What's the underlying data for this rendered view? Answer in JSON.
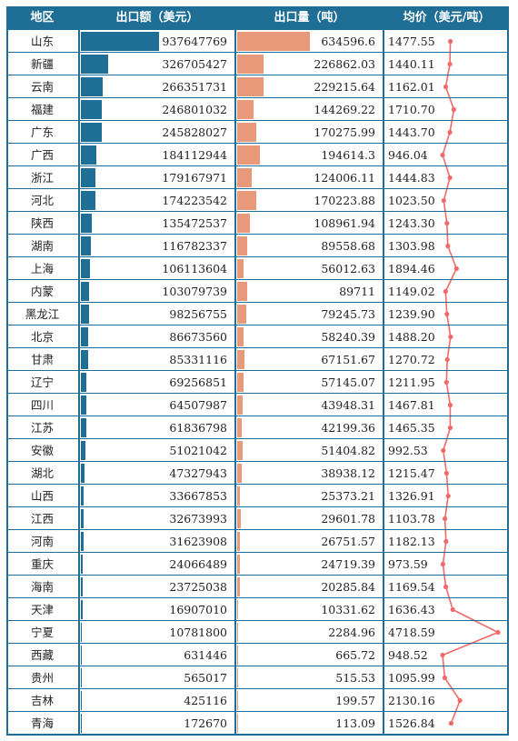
{
  "headers": {
    "region": "地区",
    "amount": "出口额（美元）",
    "quantity": "出口量（吨）",
    "avg_price": "均价（美元/吨）"
  },
  "colors": {
    "header_bg": "#1f6e96",
    "amount_bar": "#1f6e96",
    "quantity_bar": "#e8997a",
    "price_line": "#f06a6a"
  },
  "chart_data": {
    "type": "table",
    "columns": [
      "地区",
      "出口额（美元）",
      "出口量（吨）",
      "均价（美元/吨）"
    ],
    "rows": [
      {
        "region": "山东",
        "amount": 937647769,
        "amount_text": "937647769",
        "quantity": 634596.6,
        "quantity_text": "634596.6",
        "avg": 1477.55,
        "avg_text": "1477.55"
      },
      {
        "region": "新疆",
        "amount": 326705427,
        "amount_text": "326705427",
        "quantity": 226862.03,
        "quantity_text": "226862.03",
        "avg": 1440.11,
        "avg_text": "1440.11"
      },
      {
        "region": "云南",
        "amount": 266351731,
        "amount_text": "266351731",
        "quantity": 229215.64,
        "quantity_text": "229215.64",
        "avg": 1162.01,
        "avg_text": "1162.01"
      },
      {
        "region": "福建",
        "amount": 246801032,
        "amount_text": "246801032",
        "quantity": 144269.22,
        "quantity_text": "144269.22",
        "avg": 1710.7,
        "avg_text": "1710.70"
      },
      {
        "region": "广东",
        "amount": 245828027,
        "amount_text": "245828027",
        "quantity": 170275.99,
        "quantity_text": "170275.99",
        "avg": 1443.7,
        "avg_text": "1443.70"
      },
      {
        "region": "广西",
        "amount": 184112944,
        "amount_text": "184112944",
        "quantity": 194614.3,
        "quantity_text": "194614.3",
        "avg": 946.04,
        "avg_text": "946.04"
      },
      {
        "region": "浙江",
        "amount": 179167971,
        "amount_text": "179167971",
        "quantity": 124006.11,
        "quantity_text": "124006.11",
        "avg": 1444.83,
        "avg_text": "1444.83"
      },
      {
        "region": "河北",
        "amount": 174223542,
        "amount_text": "174223542",
        "quantity": 170223.88,
        "quantity_text": "170223.88",
        "avg": 1023.5,
        "avg_text": "1023.50"
      },
      {
        "region": "陕西",
        "amount": 135472537,
        "amount_text": "135472537",
        "quantity": 108961.94,
        "quantity_text": "108961.94",
        "avg": 1243.3,
        "avg_text": "1243.30"
      },
      {
        "region": "湖南",
        "amount": 116782337,
        "amount_text": "116782337",
        "quantity": 89558.68,
        "quantity_text": "89558.68",
        "avg": 1303.98,
        "avg_text": "1303.98"
      },
      {
        "region": "上海",
        "amount": 106113604,
        "amount_text": "106113604",
        "quantity": 56012.63,
        "quantity_text": "56012.63",
        "avg": 1894.46,
        "avg_text": "1894.46"
      },
      {
        "region": "内蒙",
        "amount": 103079739,
        "amount_text": "103079739",
        "quantity": 89711,
        "quantity_text": "89711",
        "avg": 1149.02,
        "avg_text": "1149.02"
      },
      {
        "region": "黑龙江",
        "amount": 98256755,
        "amount_text": "98256755",
        "quantity": 79245.73,
        "quantity_text": "79245.73",
        "avg": 1239.9,
        "avg_text": "1239.90"
      },
      {
        "region": "北京",
        "amount": 86673560,
        "amount_text": "86673560",
        "quantity": 58240.39,
        "quantity_text": "58240.39",
        "avg": 1488.2,
        "avg_text": "1488.20"
      },
      {
        "region": "甘肃",
        "amount": 85331116,
        "amount_text": "85331116",
        "quantity": 67151.67,
        "quantity_text": "67151.67",
        "avg": 1270.72,
        "avg_text": "1270.72"
      },
      {
        "region": "辽宁",
        "amount": 69256851,
        "amount_text": "69256851",
        "quantity": 57145.07,
        "quantity_text": "57145.07",
        "avg": 1211.95,
        "avg_text": "1211.95"
      },
      {
        "region": "四川",
        "amount": 64507987,
        "amount_text": "64507987",
        "quantity": 43948.31,
        "quantity_text": "43948.31",
        "avg": 1467.81,
        "avg_text": "1467.81"
      },
      {
        "region": "江苏",
        "amount": 61836798,
        "amount_text": "61836798",
        "quantity": 42199.36,
        "quantity_text": "42199.36",
        "avg": 1465.35,
        "avg_text": "1465.35"
      },
      {
        "region": "安徽",
        "amount": 51021042,
        "amount_text": "51021042",
        "quantity": 51404.82,
        "quantity_text": "51404.82",
        "avg": 992.53,
        "avg_text": "992.53"
      },
      {
        "region": "湖北",
        "amount": 47327943,
        "amount_text": "47327943",
        "quantity": 38938.12,
        "quantity_text": "38938.12",
        "avg": 1215.47,
        "avg_text": "1215.47"
      },
      {
        "region": "山西",
        "amount": 33667853,
        "amount_text": "33667853",
        "quantity": 25373.21,
        "quantity_text": "25373.21",
        "avg": 1326.91,
        "avg_text": "1326.91"
      },
      {
        "region": "江西",
        "amount": 32673993,
        "amount_text": "32673993",
        "quantity": 29601.78,
        "quantity_text": "29601.78",
        "avg": 1103.78,
        "avg_text": "1103.78"
      },
      {
        "region": "河南",
        "amount": 31623908,
        "amount_text": "31623908",
        "quantity": 26751.57,
        "quantity_text": "26751.57",
        "avg": 1182.13,
        "avg_text": "1182.13"
      },
      {
        "region": "重庆",
        "amount": 24066489,
        "amount_text": "24066489",
        "quantity": 24719.39,
        "quantity_text": "24719.39",
        "avg": 973.59,
        "avg_text": "973.59"
      },
      {
        "region": "海南",
        "amount": 23725038,
        "amount_text": "23725038",
        "quantity": 20285.84,
        "quantity_text": "20285.84",
        "avg": 1169.54,
        "avg_text": "1169.54"
      },
      {
        "region": "天津",
        "amount": 16907010,
        "amount_text": "16907010",
        "quantity": 10331.62,
        "quantity_text": "10331.62",
        "avg": 1636.43,
        "avg_text": "1636.43"
      },
      {
        "region": "宁夏",
        "amount": 10781800,
        "amount_text": "10781800",
        "quantity": 2284.96,
        "quantity_text": "2284.96",
        "avg": 4718.59,
        "avg_text": "4718.59"
      },
      {
        "region": "西藏",
        "amount": 631446,
        "amount_text": "631446",
        "quantity": 665.72,
        "quantity_text": "665.72",
        "avg": 948.52,
        "avg_text": "948.52"
      },
      {
        "region": "贵州",
        "amount": 565017,
        "amount_text": "565017",
        "quantity": 515.53,
        "quantity_text": "515.53",
        "avg": 1095.99,
        "avg_text": "1095.99"
      },
      {
        "region": "吉林",
        "amount": 425116,
        "amount_text": "425116",
        "quantity": 199.57,
        "quantity_text": "199.57",
        "avg": 2130.16,
        "avg_text": "2130.16"
      },
      {
        "region": "青海",
        "amount": 172670,
        "amount_text": "172670",
        "quantity": 113.09,
        "quantity_text": "113.09",
        "avg": 1526.84,
        "avg_text": "1526.84"
      }
    ]
  }
}
